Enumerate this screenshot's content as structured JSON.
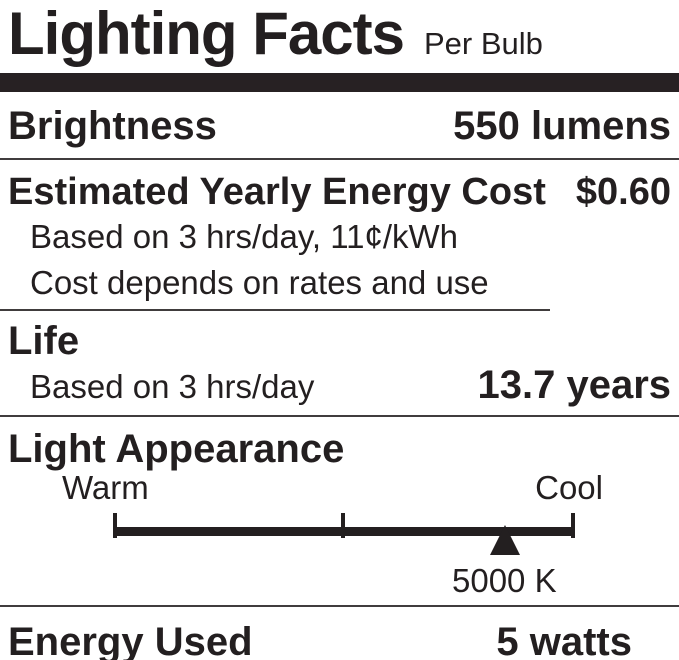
{
  "colors": {
    "text": "#231f20",
    "thick_bar": "#272123",
    "divider": "#403c3d",
    "background": "#ffffff"
  },
  "title": {
    "main": "Lighting Facts",
    "qualifier": "Per Bulb"
  },
  "brightness": {
    "label": "Brightness",
    "value": "550 lumens"
  },
  "energy_cost": {
    "label": "Estimated Yearly Energy Cost",
    "value": "$0.60",
    "basis": "Based on 3 hrs/day, 11¢/kWh",
    "disclaimer": "Cost depends on rates and use"
  },
  "life": {
    "label": "Life",
    "basis": "Based on 3 hrs/day",
    "value": "13.7 years"
  },
  "light_appearance": {
    "label": "Light Appearance",
    "warm_label": "Warm",
    "cool_label": "Cool",
    "color_temperature": "5000 K",
    "marker_position_pct": 84.8
  },
  "energy_used": {
    "label": "Energy Used",
    "value": "5 watts"
  }
}
